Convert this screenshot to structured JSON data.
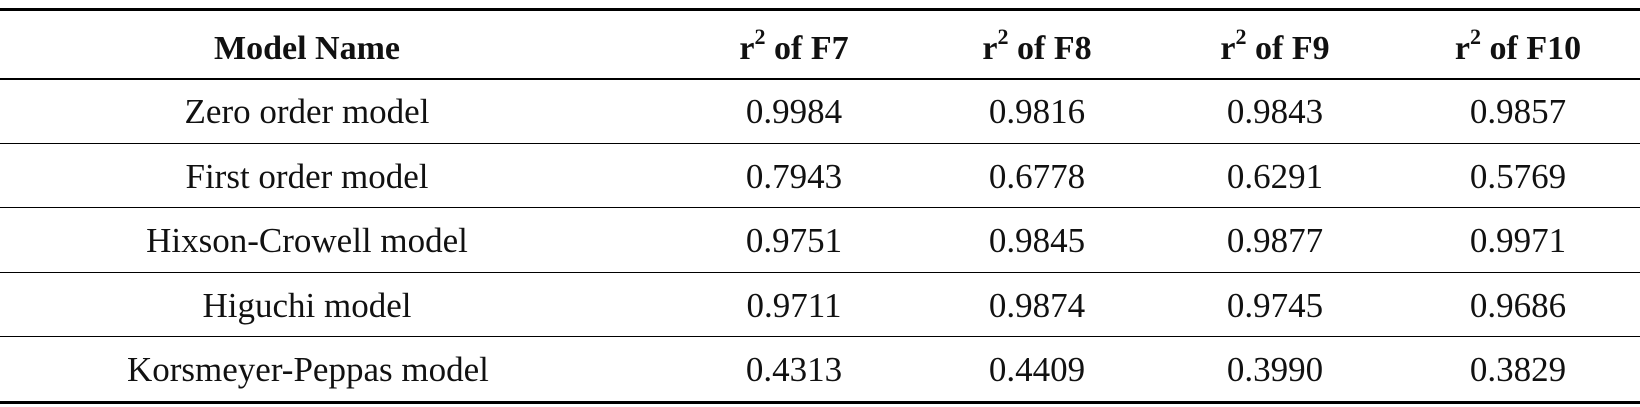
{
  "table": {
    "header": [
      {
        "text": "Model Name"
      },
      {
        "base": "r",
        "sup": "2",
        "suffix": " of F7"
      },
      {
        "base": "r",
        "sup": "2",
        "suffix": " of F8"
      },
      {
        "base": "r",
        "sup": "2",
        "suffix": " of F9"
      },
      {
        "base": "r",
        "sup": "2",
        "suffix": " of F10"
      }
    ],
    "rows": [
      [
        "Zero order model",
        "0.9984",
        "0.9816",
        "0.9843",
        "0.9857"
      ],
      [
        "First order model",
        "0.7943",
        "0.6778",
        "0.6291",
        "0.5769"
      ],
      [
        "Hixson-Crowell model",
        "0.9751",
        "0.9845",
        "0.9877",
        "0.9971"
      ],
      [
        "Higuchi model",
        "0.9711",
        "0.9874",
        "0.9745",
        "0.9686"
      ],
      [
        "Korsmeyer-Peppas model",
        "0.4313",
        "0.4409",
        "0.3990",
        "0.3829"
      ]
    ]
  }
}
